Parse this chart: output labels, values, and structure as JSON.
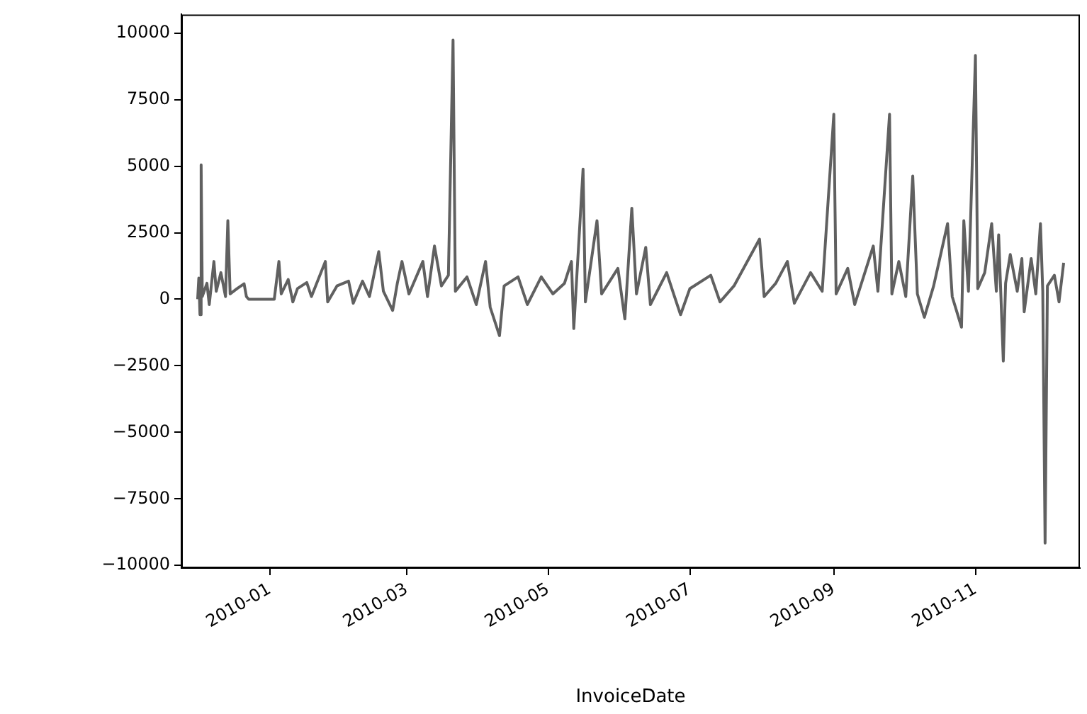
{
  "chart_data": {
    "type": "line",
    "xlabel": "InvoiceDate",
    "marker": "none",
    "line_style": "solid",
    "xlim": [
      "2009-11-24",
      "2010-12-16"
    ],
    "xticks": [
      "2010-01",
      "2010-03",
      "2010-05",
      "2010-07",
      "2010-09",
      "2010-11"
    ],
    "ylim": [
      -10100,
      10700
    ],
    "yticks": [
      -10000,
      -7500,
      -5000,
      -2500,
      0,
      2500,
      5000,
      7500,
      10000
    ],
    "x": [
      "2009-12-01",
      "2009-12-01T12:00",
      "2009-12-02",
      "2009-12-02T12:00",
      "2009-12-03",
      "2009-12-05",
      "2009-12-06",
      "2009-12-08",
      "2009-12-09",
      "2009-12-11",
      "2009-12-13",
      "2009-12-14",
      "2009-12-15",
      "2009-12-18",
      "2009-12-21",
      "2009-12-22",
      "2009-12-23",
      "2010-01-03",
      "2010-01-05",
      "2010-01-06",
      "2010-01-09",
      "2010-01-11",
      "2010-01-13",
      "2010-01-17",
      "2010-01-19",
      "2010-01-25",
      "2010-01-26",
      "2010-01-30",
      "2010-02-04",
      "2010-02-06",
      "2010-02-10",
      "2010-02-13",
      "2010-02-17",
      "2010-02-19",
      "2010-02-23",
      "2010-02-25",
      "2010-02-27",
      "2010-03-02",
      "2010-03-08",
      "2010-03-10",
      "2010-03-13",
      "2010-03-16",
      "2010-03-19",
      "2010-03-21",
      "2010-03-22",
      "2010-03-27",
      "2010-03-31",
      "2010-04-04",
      "2010-04-06",
      "2010-04-10",
      "2010-04-12",
      "2010-04-18",
      "2010-04-22",
      "2010-04-28",
      "2010-05-03",
      "2010-05-08",
      "2010-05-11",
      "2010-05-12",
      "2010-05-16",
      "2010-05-17",
      "2010-05-22",
      "2010-05-24",
      "2010-05-31",
      "2010-06-03",
      "2010-06-06",
      "2010-06-08",
      "2010-06-12",
      "2010-06-14",
      "2010-06-21",
      "2010-06-24",
      "2010-06-27",
      "2010-07-01",
      "2010-07-10",
      "2010-07-14",
      "2010-07-20",
      "2010-07-31",
      "2010-08-02",
      "2010-08-07",
      "2010-08-12",
      "2010-08-15",
      "2010-08-22",
      "2010-08-27",
      "2010-09-01",
      "2010-09-02",
      "2010-09-07",
      "2010-09-10",
      "2010-09-18",
      "2010-09-20",
      "2010-09-25",
      "2010-09-26",
      "2010-09-29",
      "2010-10-02",
      "2010-10-05",
      "2010-10-07",
      "2010-10-10",
      "2010-10-14",
      "2010-10-20",
      "2010-10-22",
      "2010-10-26",
      "2010-10-27",
      "2010-10-29",
      "2010-11-01",
      "2010-11-02",
      "2010-11-05",
      "2010-11-08",
      "2010-11-10",
      "2010-11-11",
      "2010-11-13",
      "2010-11-14",
      "2010-11-16",
      "2010-11-19",
      "2010-11-21",
      "2010-11-22",
      "2010-11-25",
      "2010-11-27",
      "2010-11-29",
      "2010-11-30",
      "2010-12-01",
      "2010-12-02",
      "2010-12-05",
      "2010-12-07",
      "2010-12-09"
    ],
    "series": [
      {
        "color": "#606060",
        "values": [
          0,
          800,
          -580,
          5050,
          100,
          600,
          -200,
          1420,
          300,
          1000,
          100,
          2950,
          200,
          400,
          580,
          100,
          0,
          0,
          1420,
          200,
          740,
          -100,
          400,
          630,
          100,
          1420,
          -100,
          500,
          680,
          -150,
          680,
          100,
          1790,
          300,
          -420,
          600,
          1420,
          200,
          1420,
          100,
          2000,
          500,
          900,
          9740,
          300,
          840,
          -200,
          1420,
          -300,
          -1370,
          500,
          840,
          -200,
          840,
          200,
          600,
          1420,
          -1100,
          4890,
          -100,
          2950,
          200,
          1160,
          -740,
          3420,
          200,
          1950,
          -200,
          1000,
          200,
          -580,
          400,
          900,
          -100,
          500,
          2260,
          100,
          600,
          1420,
          -150,
          1000,
          300,
          6950,
          200,
          1160,
          -200,
          2000,
          300,
          6950,
          200,
          1420,
          100,
          4630,
          200,
          -680,
          500,
          2840,
          100,
          -1050,
          2950,
          300,
          9160,
          400,
          1000,
          2840,
          300,
          2420,
          -2320,
          600,
          1680,
          300,
          1530,
          -470,
          1530,
          200,
          2840,
          300,
          -9160,
          500,
          900,
          -100,
          1370
        ]
      }
    ]
  }
}
